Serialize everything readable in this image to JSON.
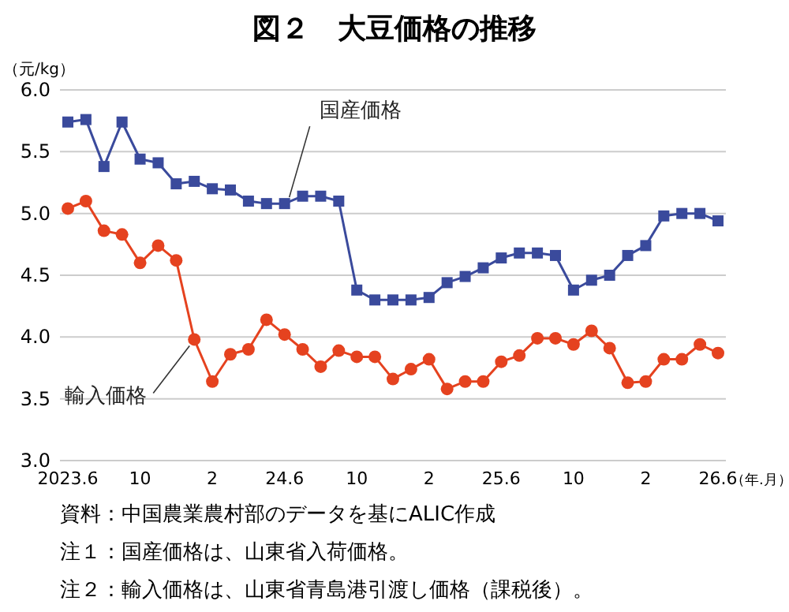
{
  "chart_data": {
    "type": "line",
    "title": "図２　大豆価格の推移",
    "ylabel": "（元/kg）",
    "xlabel": "（年.月）",
    "categories": [
      "2023.6",
      null,
      null,
      null,
      "10",
      null,
      null,
      null,
      "2",
      null,
      null,
      null,
      "24.6",
      null,
      null,
      null,
      "10",
      null,
      null,
      null,
      "2",
      null,
      null,
      null,
      "25.6",
      null,
      null,
      null,
      "10",
      null,
      null,
      null,
      "2",
      null,
      null,
      null,
      "26.6"
    ],
    "ylim": [
      3.0,
      6.0
    ],
    "yticks": [
      {
        "value": 3.0,
        "label": "3.0"
      },
      {
        "value": 3.5,
        "label": "3.5"
      },
      {
        "value": 4.0,
        "label": "4.0"
      },
      {
        "value": 4.5,
        "label": "4.5"
      },
      {
        "value": 5.0,
        "label": "5.0"
      },
      {
        "value": 5.5,
        "label": "5.5"
      },
      {
        "value": 6.0,
        "label": "6.0"
      }
    ],
    "grid": "y",
    "legend": false,
    "series": [
      {
        "name": "国産価格",
        "color": "#3a4a9c",
        "marker": "square",
        "values": [
          5.74,
          5.76,
          5.38,
          5.74,
          5.44,
          5.41,
          5.24,
          5.26,
          5.2,
          5.19,
          5.1,
          5.08,
          5.08,
          5.14,
          5.14,
          5.1,
          4.38,
          4.3,
          4.3,
          4.3,
          4.32,
          4.44,
          4.49,
          4.56,
          4.64,
          4.68,
          4.68,
          4.66,
          4.38,
          4.46,
          4.5,
          4.66,
          4.74,
          4.98,
          5.0,
          5.0,
          4.94
        ]
      },
      {
        "name": "輸入価格",
        "color": "#e5421f",
        "marker": "circle",
        "values": [
          5.04,
          5.1,
          4.86,
          4.83,
          4.6,
          4.74,
          4.62,
          3.98,
          3.64,
          3.86,
          3.9,
          4.14,
          4.02,
          3.9,
          3.76,
          3.89,
          3.84,
          3.84,
          3.66,
          3.74,
          3.82,
          3.58,
          3.64,
          3.64,
          3.8,
          3.85,
          3.99,
          3.99,
          3.94,
          4.05,
          3.91,
          3.63,
          3.64,
          3.82,
          3.82,
          3.94,
          3.87
        ]
      }
    ],
    "annotations": [
      "資料：中国農業農村部のデータを基にALIC作成",
      "注１：国産価格は、山東省入荷価格。",
      "注２：輸入価格は、山東省青島港引渡し価格（課税後）。"
    ]
  }
}
